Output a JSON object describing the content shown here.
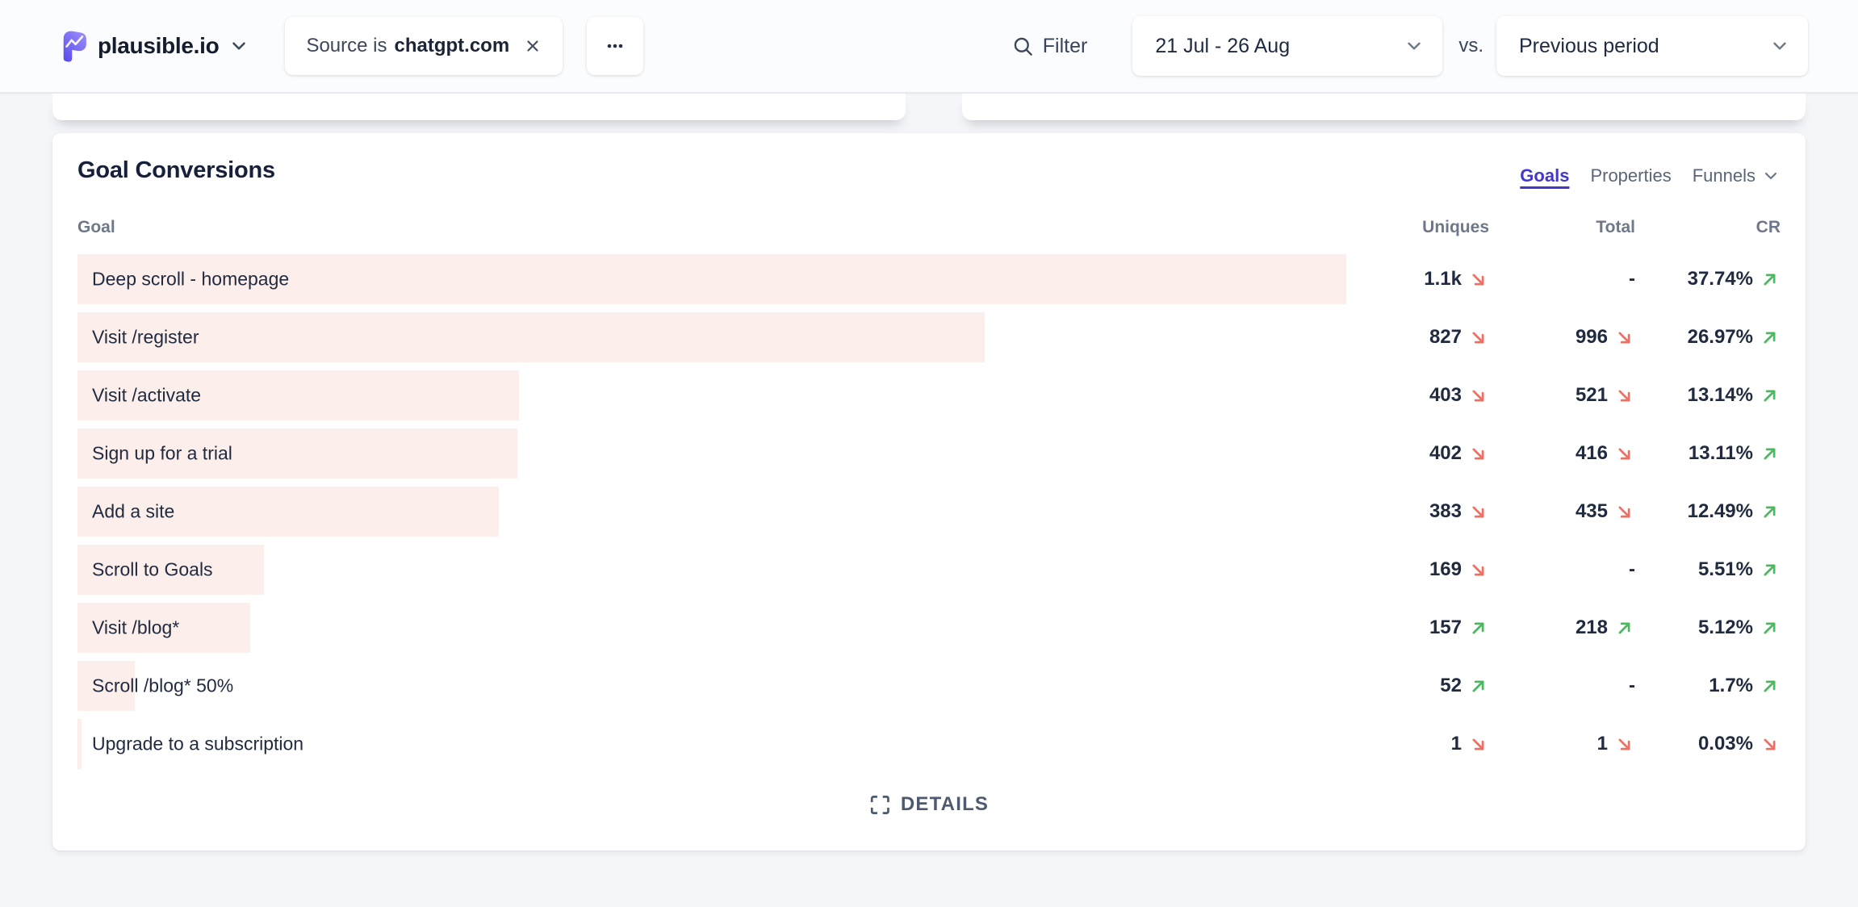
{
  "header": {
    "site_name": "plausible.io",
    "filter_pill": {
      "prefix": "Source is",
      "value": "chatgpt.com"
    },
    "filter_label": "Filter",
    "date_range": "21 Jul - 26 Aug",
    "vs_label": "vs.",
    "comparison": "Previous period"
  },
  "card": {
    "title": "Goal Conversions",
    "tabs": [
      {
        "label": "Goals",
        "active": true
      },
      {
        "label": "Properties",
        "active": false
      },
      {
        "label": "Funnels",
        "active": false
      }
    ],
    "columns": {
      "goal": "Goal",
      "uniques": "Uniques",
      "total": "Total",
      "cr": "CR"
    },
    "details_label": "DETAILS"
  },
  "chart_data": {
    "type": "table",
    "title": "Goal Conversions",
    "columns": [
      "Goal",
      "Uniques",
      "Total",
      "CR"
    ],
    "rows": [
      {
        "goal": "Deep scroll - homepage",
        "uniques": "1.1k",
        "uniques_trend": "down",
        "total": "-",
        "total_trend": null,
        "cr": "37.74%",
        "cr_trend": "up",
        "bar_pct": 100
      },
      {
        "goal": "Visit /register",
        "uniques": "827",
        "uniques_trend": "down",
        "total": "996",
        "total_trend": "down",
        "cr": "26.97%",
        "cr_trend": "up",
        "bar_pct": 71.5
      },
      {
        "goal": "Visit /activate",
        "uniques": "403",
        "uniques_trend": "down",
        "total": "521",
        "total_trend": "down",
        "cr": "13.14%",
        "cr_trend": "up",
        "bar_pct": 34.8
      },
      {
        "goal": "Sign up for a trial",
        "uniques": "402",
        "uniques_trend": "down",
        "total": "416",
        "total_trend": "down",
        "cr": "13.11%",
        "cr_trend": "up",
        "bar_pct": 34.7
      },
      {
        "goal": "Add a site",
        "uniques": "383",
        "uniques_trend": "down",
        "total": "435",
        "total_trend": "down",
        "cr": "12.49%",
        "cr_trend": "up",
        "bar_pct": 33.2
      },
      {
        "goal": "Scroll to Goals",
        "uniques": "169",
        "uniques_trend": "down",
        "total": "-",
        "total_trend": null,
        "cr": "5.51%",
        "cr_trend": "up",
        "bar_pct": 14.7
      },
      {
        "goal": "Visit /blog*",
        "uniques": "157",
        "uniques_trend": "up",
        "total": "218",
        "total_trend": "up",
        "cr": "5.12%",
        "cr_trend": "up",
        "bar_pct": 13.6
      },
      {
        "goal": "Scroll /blog* 50%",
        "uniques": "52",
        "uniques_trend": "up",
        "total": "-",
        "total_trend": null,
        "cr": "1.7%",
        "cr_trend": "up",
        "bar_pct": 4.5
      },
      {
        "goal": "Upgrade to a subscription",
        "uniques": "1",
        "uniques_trend": "down",
        "total": "1",
        "total_trend": "down",
        "cr": "0.03%",
        "cr_trend": "down",
        "bar_pct": 0.3
      }
    ]
  },
  "colors": {
    "accent": "#4338ca",
    "bar_fill": "#fceeeb",
    "trend_up": "#4cb861",
    "trend_down": "#ee7065"
  }
}
